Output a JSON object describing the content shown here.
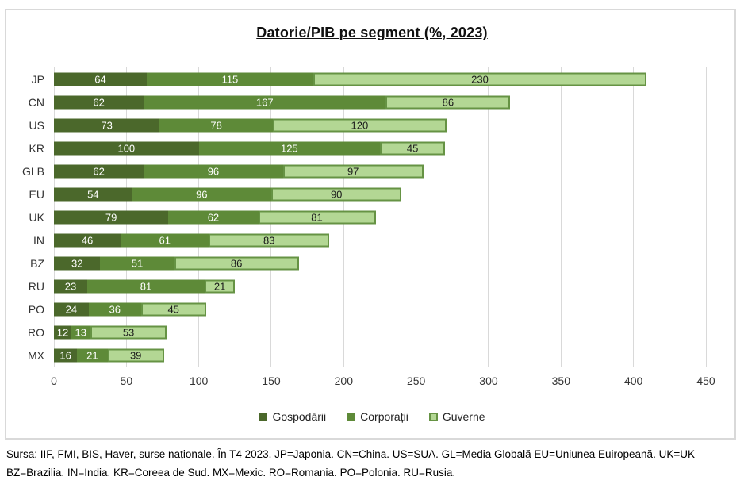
{
  "chart_data": {
    "type": "bar",
    "orientation": "horizontal",
    "stacked": true,
    "title": "Datorie/PIB pe segment (%, 2023)",
    "categories": [
      "JP",
      "CN",
      "US",
      "KR",
      "GLB",
      "EU",
      "UK",
      "IN",
      "BZ",
      "RU",
      "PO",
      "RO",
      "MX"
    ],
    "series": [
      {
        "name": "Gospodării",
        "color": "#4b682b",
        "label_color": "#ffffff",
        "values": [
          64,
          62,
          73,
          100,
          62,
          54,
          79,
          46,
          32,
          23,
          24,
          12,
          16
        ]
      },
      {
        "name": "Corporații",
        "color": "#5e8a38",
        "label_color": "#ffffff",
        "values": [
          115,
          167,
          78,
          125,
          96,
          96,
          62,
          61,
          51,
          81,
          36,
          13,
          21
        ]
      },
      {
        "name": "Guverne",
        "color": "#b3d794",
        "border_color": "#669344",
        "label_color": "#1a1a1a",
        "values": [
          230,
          86,
          120,
          45,
          97,
          90,
          81,
          83,
          86,
          21,
          45,
          53,
          39
        ]
      }
    ],
    "xlim": [
      0,
      450
    ],
    "x_ticks": [
      0,
      50,
      100,
      150,
      200,
      250,
      300,
      350,
      400,
      450
    ],
    "grid": "vertical",
    "legend_position": "bottom",
    "gridline_color": "#d9d9d9",
    "frame_border_color": "#d9d9d9"
  },
  "footer": {
    "lines": [
      "Sursa: IIF, FMI, BIS, Haver, surse naționale.  În T4 2023. JP=Japonia. CN=China. US=SUA. GL=Media Globală EU=Uniunea Euiropeană. UK=UK",
      "BZ=Brazilia. IN=India. KR=Coreea de Sud. MX=Mexic. RO=Romania. PO=Polonia. RU=Rusia."
    ]
  }
}
